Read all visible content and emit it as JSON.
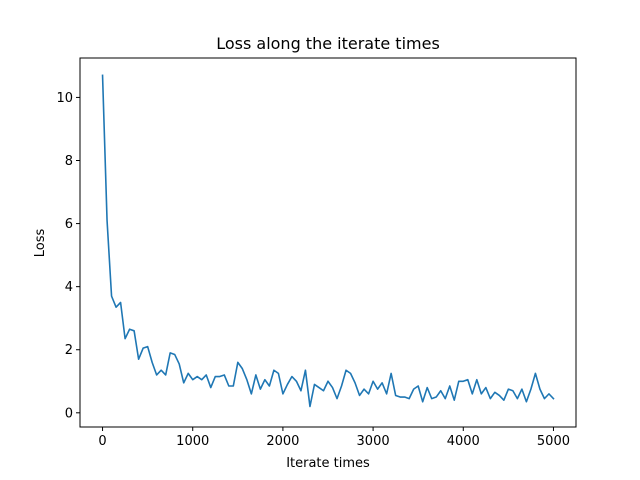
{
  "chart_data": {
    "type": "line",
    "title": "Loss along the iterate times",
    "xlabel": "Iterate times",
    "ylabel": "Loss",
    "xlim": [
      -250,
      5250
    ],
    "ylim": [
      -0.45,
      11.25
    ],
    "xticks": [
      0,
      1000,
      2000,
      3000,
      4000,
      5000
    ],
    "yticks": [
      0,
      2,
      4,
      6,
      8,
      10
    ],
    "grid": false,
    "line_color": "#1f77b4",
    "series": [
      {
        "x": [
          0,
          50,
          100,
          150,
          200,
          250,
          300,
          350,
          400,
          450,
          500,
          550,
          600,
          650,
          700,
          750,
          800,
          850,
          900,
          950,
          1000,
          1050,
          1100,
          1150,
          1200,
          1250,
          1300,
          1350,
          1400,
          1450,
          1500,
          1550,
          1600,
          1650,
          1700,
          1750,
          1800,
          1850,
          1900,
          1950,
          2000,
          2050,
          2100,
          2150,
          2200,
          2250,
          2300,
          2350,
          2400,
          2450,
          2500,
          2550,
          2600,
          2650,
          2700,
          2750,
          2800,
          2850,
          2900,
          2950,
          3000,
          3050,
          3100,
          3150,
          3200,
          3250,
          3300,
          3350,
          3400,
          3450,
          3500,
          3550,
          3600,
          3650,
          3700,
          3750,
          3800,
          3850,
          3900,
          3950,
          4000,
          4050,
          4100,
          4150,
          4200,
          4250,
          4300,
          4350,
          4400,
          4450,
          4500,
          4550,
          4600,
          4650,
          4700,
          4750,
          4800,
          4850,
          4900,
          4950,
          5000
        ],
        "y": [
          10.7,
          6.1,
          3.7,
          3.35,
          3.5,
          2.35,
          2.65,
          2.6,
          1.7,
          2.05,
          2.1,
          1.6,
          1.2,
          1.35,
          1.2,
          1.9,
          1.85,
          1.55,
          0.95,
          1.25,
          1.05,
          1.15,
          1.05,
          1.2,
          0.8,
          1.15,
          1.15,
          1.2,
          0.85,
          0.85,
          1.6,
          1.4,
          1.05,
          0.6,
          1.2,
          0.75,
          1.05,
          0.85,
          1.35,
          1.25,
          0.6,
          0.9,
          1.15,
          1.0,
          0.7,
          1.35,
          0.2,
          0.9,
          0.8,
          0.7,
          1.0,
          0.8,
          0.45,
          0.85,
          1.35,
          1.25,
          0.95,
          0.55,
          0.75,
          0.6,
          1.0,
          0.75,
          0.95,
          0.6,
          1.25,
          0.55,
          0.5,
          0.5,
          0.45,
          0.75,
          0.85,
          0.35,
          0.8,
          0.45,
          0.5,
          0.7,
          0.45,
          0.85,
          0.4,
          1.0,
          1.0,
          1.05,
          0.6,
          1.05,
          0.6,
          0.8,
          0.45,
          0.65,
          0.55,
          0.4,
          0.75,
          0.7,
          0.45,
          0.75,
          0.35,
          0.75,
          1.25,
          0.75,
          0.45,
          0.6,
          0.45
        ]
      }
    ]
  }
}
